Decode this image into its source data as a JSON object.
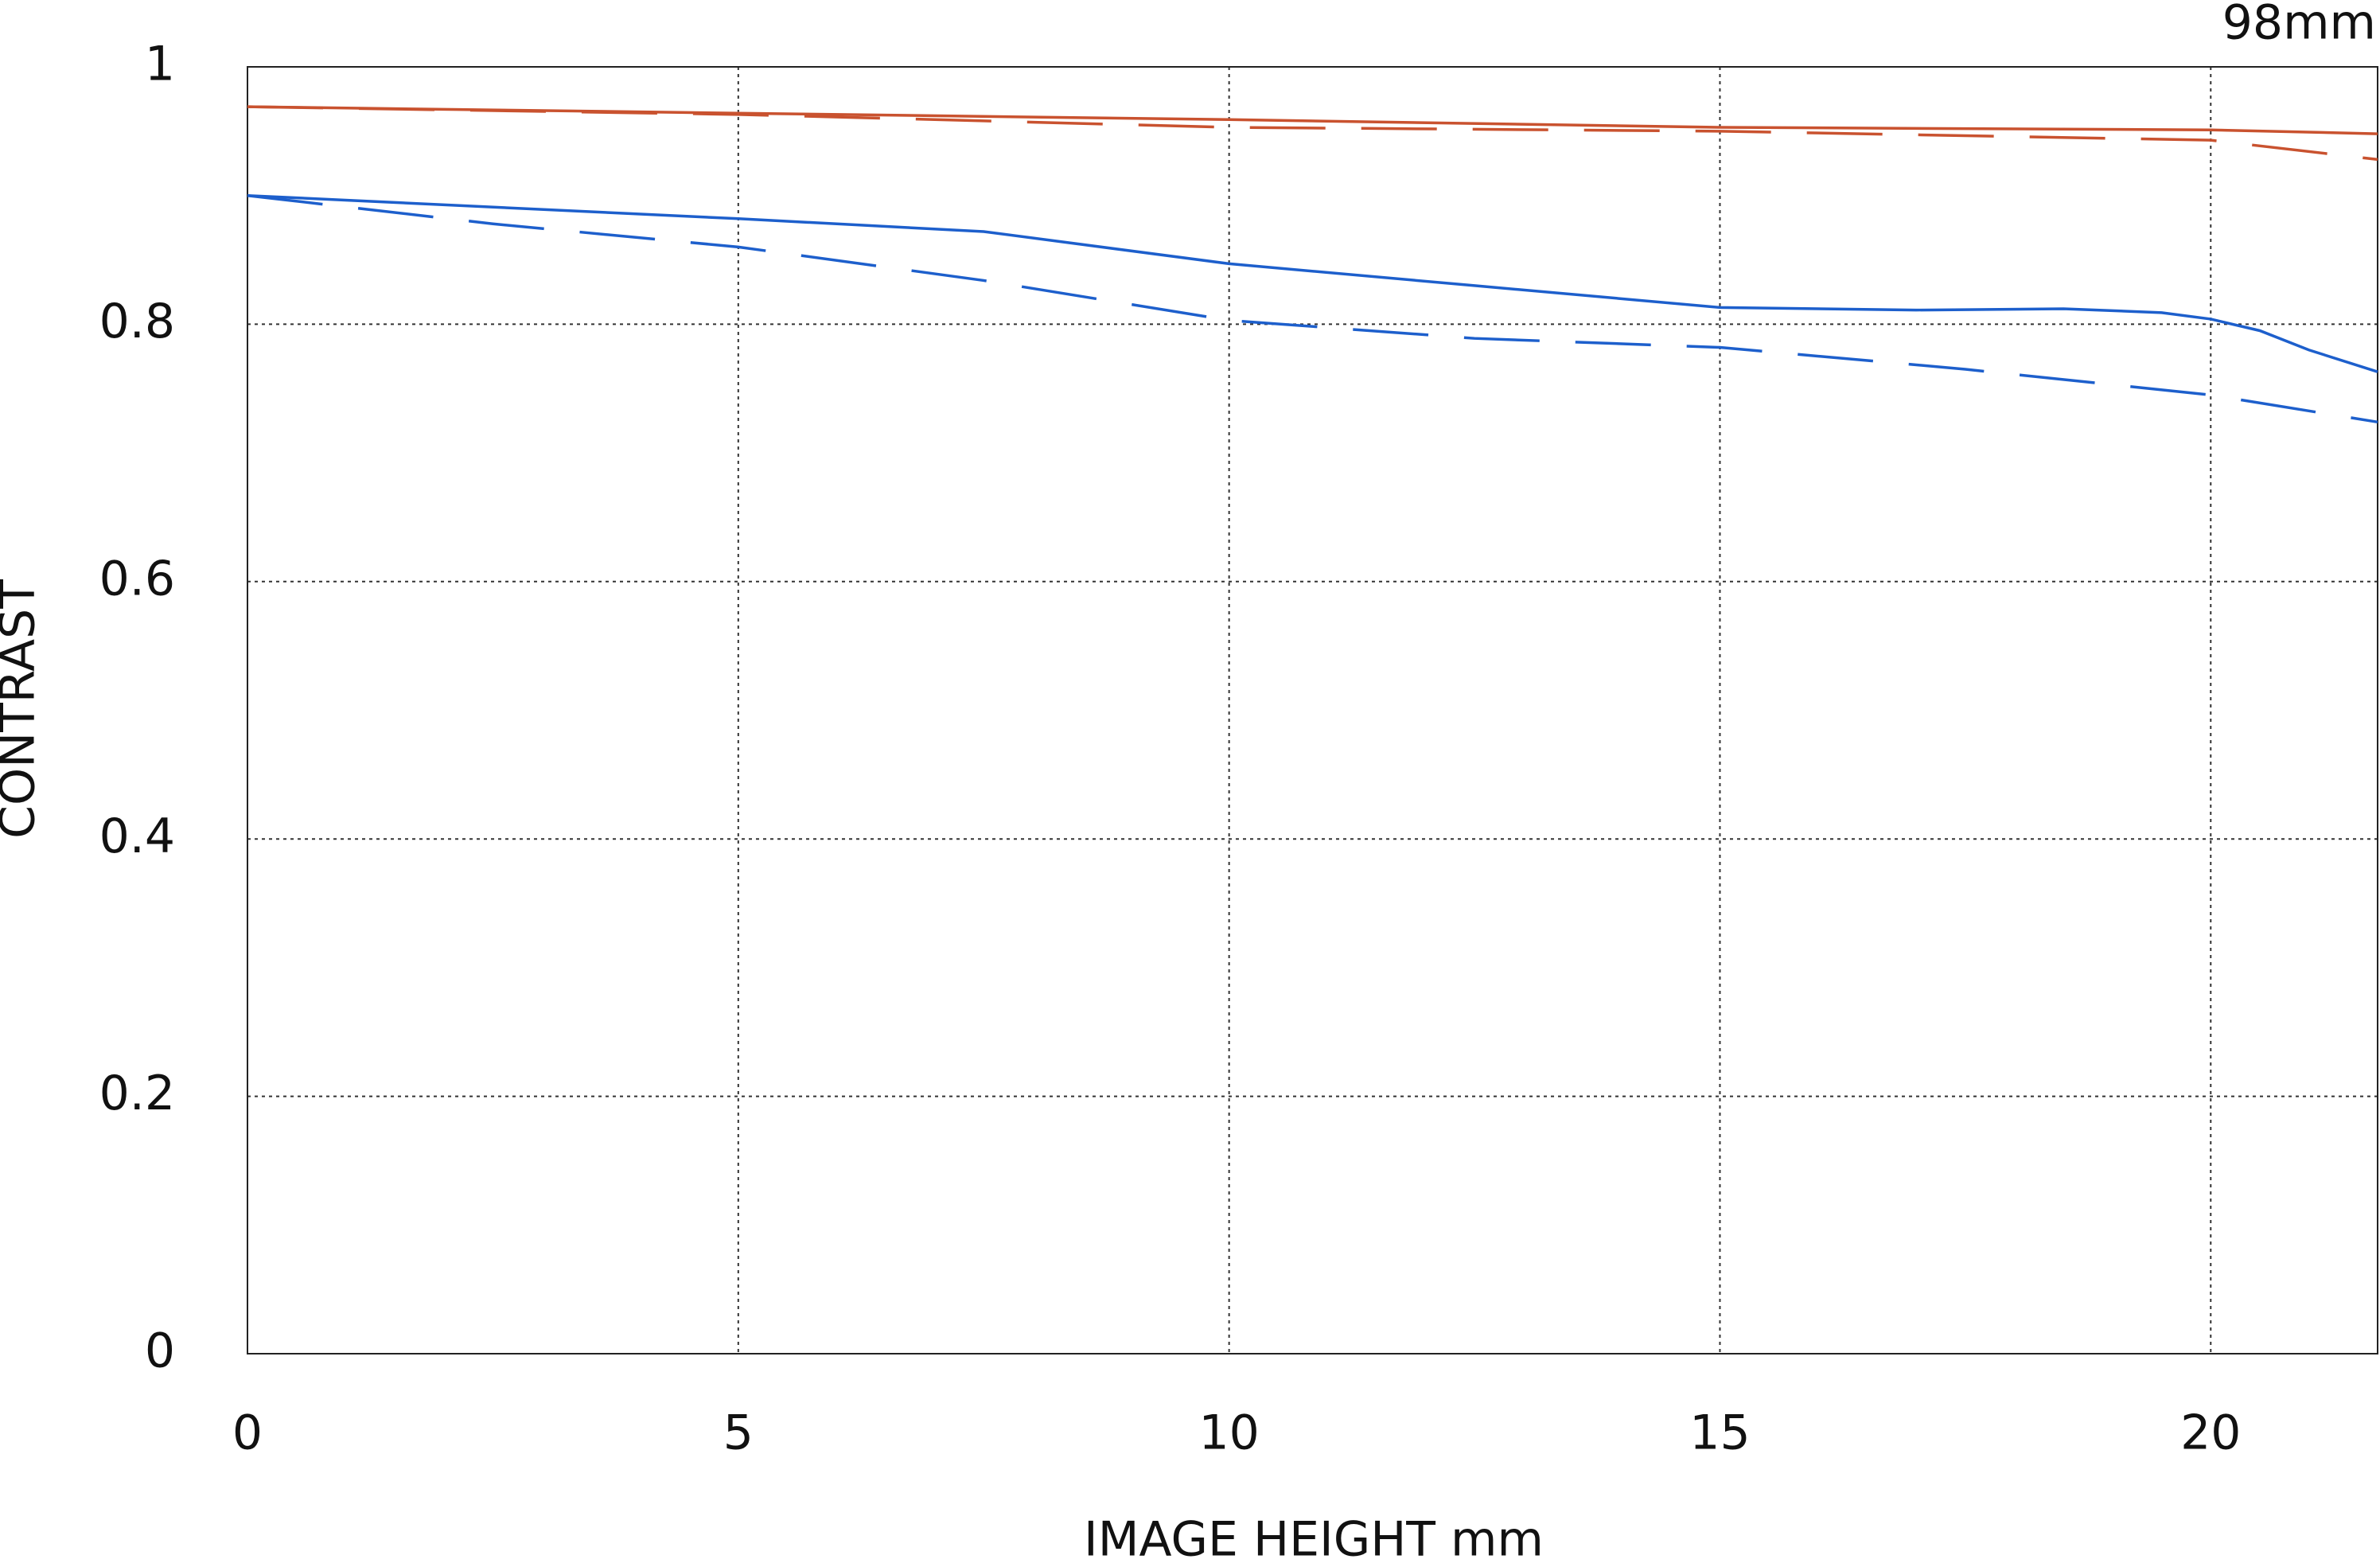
{
  "chart_data": {
    "type": "line",
    "title": "98mm",
    "x_label": "IMAGE HEIGHT  mm",
    "y_label": "CONTRAST",
    "xlim": [
      0,
      21.7
    ],
    "ylim": [
      0,
      1
    ],
    "xticks": [
      0,
      5,
      10,
      15,
      20
    ],
    "yticks": [
      0,
      0.2,
      0.4,
      0.6,
      0.8,
      1
    ],
    "grid": true,
    "series": [
      {
        "color": "#c9522f",
        "style": "solid",
        "x": [
          0,
          5,
          10,
          15,
          20,
          21.7
        ],
        "values": [
          0.969,
          0.964,
          0.959,
          0.953,
          0.951,
          0.948
        ]
      },
      {
        "color": "#c9522f",
        "style": "dashed",
        "x": [
          0,
          5,
          10,
          15,
          20,
          21.7
        ],
        "values": [
          0.969,
          0.963,
          0.953,
          0.95,
          0.943,
          0.928
        ]
      },
      {
        "color": "#1d5fcc",
        "style": "solid",
        "x": [
          0,
          5,
          7.5,
          10,
          12.5,
          15,
          17,
          18.5,
          19.5,
          20,
          20.5,
          21,
          21.7
        ],
        "values": [
          0.9,
          0.882,
          0.872,
          0.847,
          0.83,
          0.813,
          0.811,
          0.812,
          0.809,
          0.804,
          0.795,
          0.78,
          0.763
        ]
      },
      {
        "color": "#1d5fcc",
        "style": "dashed",
        "x": [
          0,
          2.5,
          5,
          7.5,
          10,
          12.5,
          15,
          17.5,
          20,
          21.7
        ],
        "values": [
          0.9,
          0.878,
          0.86,
          0.834,
          0.803,
          0.789,
          0.782,
          0.765,
          0.745,
          0.724
        ]
      }
    ]
  }
}
